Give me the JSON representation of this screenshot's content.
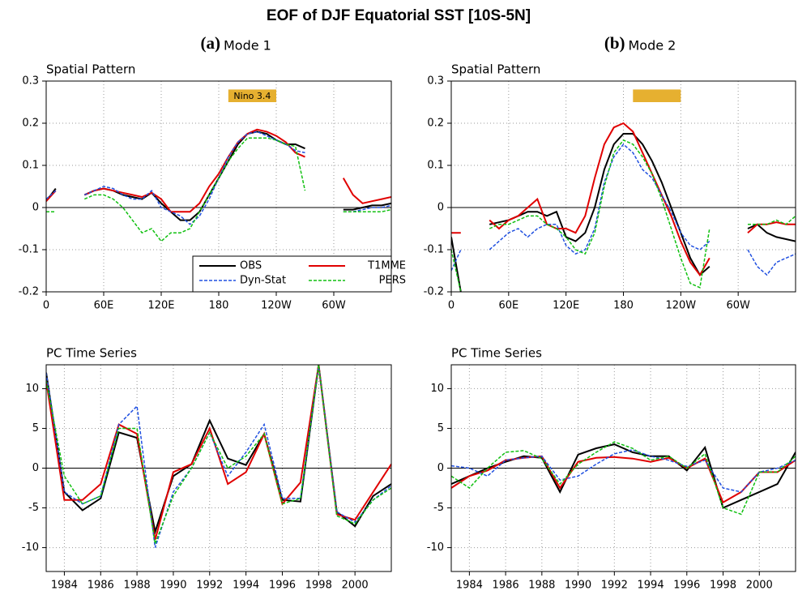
{
  "title": "EOF of DJF Equatorial SST [10S-5N]",
  "chart_data": [
    {
      "type": "line",
      "panel": "(a)",
      "title": "Mode 1",
      "subtitle": "Spatial Pattern",
      "x": [
        0,
        10,
        20,
        30,
        40,
        50,
        60,
        70,
        80,
        90,
        100,
        110,
        120,
        130,
        140,
        150,
        160,
        170,
        180,
        190,
        200,
        210,
        220,
        230,
        240,
        250,
        260,
        270,
        280,
        290,
        300,
        310,
        320,
        330,
        340,
        350,
        360
      ],
      "xlim": [
        0,
        360
      ],
      "xticks": [
        0,
        {
          "value": 60,
          "label": "60E"
        },
        {
          "value": 120,
          "label": "120E"
        },
        180,
        {
          "value": 240,
          "label": "120W"
        },
        {
          "value": 300,
          "label": "60W"
        }
      ],
      "ylim": [
        -0.2,
        0.3
      ],
      "yticks": [
        -0.2,
        -0.1,
        0,
        0.1,
        0.2,
        0.3
      ],
      "grid": true,
      "legend": "lower right",
      "box": {
        "xlim": [
          190,
          240
        ],
        "ylim": [
          0.25,
          0.28
        ],
        "label": "Nino 3.4",
        "color": "#e6b030"
      },
      "series": [
        {
          "name": "OBS",
          "color": "#000000",
          "linestyle": "solid",
          "values": [
            0.015,
            0.045,
            null,
            null,
            0.03,
            0.04,
            0.045,
            0.04,
            0.03,
            0.025,
            0.02,
            0.035,
            0.01,
            -0.01,
            -0.03,
            -0.03,
            -0.01,
            0.03,
            0.07,
            0.11,
            0.15,
            0.175,
            0.18,
            0.175,
            0.16,
            0.15,
            0.15,
            0.14,
            null,
            null,
            null,
            -0.005,
            -0.005,
            0,
            0.005,
            0.005,
            0.01
          ]
        },
        {
          "name": "T1MME",
          "color": "#e00000",
          "linestyle": "solid",
          "values": [
            0.015,
            0.04,
            null,
            null,
            0.03,
            0.04,
            0.045,
            0.04,
            0.035,
            0.03,
            0.025,
            0.035,
            0.02,
            -0.01,
            -0.01,
            -0.01,
            0.01,
            0.05,
            0.08,
            0.12,
            0.155,
            0.175,
            0.185,
            0.18,
            0.17,
            0.155,
            0.13,
            0.12,
            null,
            null,
            null,
            0.07,
            0.03,
            0.01,
            0.015,
            0.02,
            0.025
          ]
        },
        {
          "name": "Dyn-Stat",
          "color": "#2050e0",
          "linestyle": "dashed",
          "values": [
            0.02,
            0.04,
            null,
            null,
            0.03,
            0.04,
            0.05,
            0.045,
            0.03,
            0.02,
            0.02,
            0.04,
            0,
            -0.01,
            -0.02,
            -0.04,
            -0.02,
            0.02,
            0.07,
            0.12,
            0.155,
            0.175,
            0.18,
            0.17,
            0.16,
            0.15,
            0.135,
            0.13,
            null,
            null,
            null,
            -0.01,
            -0.01,
            -0.005,
            0,
            0,
            0.005
          ]
        },
        {
          "name": "PERS",
          "color": "#10c010",
          "linestyle": "dashed",
          "values": [
            -0.01,
            -0.01,
            null,
            null,
            0.02,
            0.03,
            0.03,
            0.02,
            0,
            -0.03,
            -0.06,
            -0.05,
            -0.08,
            -0.06,
            -0.06,
            -0.05,
            -0.01,
            0.03,
            0.07,
            0.11,
            0.14,
            0.165,
            0.165,
            0.165,
            0.16,
            0.15,
            0.145,
            0.04,
            null,
            null,
            null,
            -0.01,
            -0.01,
            -0.01,
            -0.01,
            -0.01,
            -0.005
          ]
        }
      ]
    },
    {
      "type": "line",
      "panel": "(b)",
      "title": "Mode 2",
      "subtitle": "Spatial Pattern",
      "x": [
        0,
        10,
        20,
        30,
        40,
        50,
        60,
        70,
        80,
        90,
        100,
        110,
        120,
        130,
        140,
        150,
        160,
        170,
        180,
        190,
        200,
        210,
        220,
        230,
        240,
        250,
        260,
        270,
        280,
        290,
        300,
        310,
        320,
        330,
        340,
        350,
        360
      ],
      "xlim": [
        0,
        360
      ],
      "xticks": [
        0,
        {
          "value": 60,
          "label": "60E"
        },
        {
          "value": 120,
          "label": "120E"
        },
        180,
        {
          "value": 240,
          "label": "120W"
        },
        {
          "value": 300,
          "label": "60W"
        }
      ],
      "ylim": [
        -0.2,
        0.3
      ],
      "yticks": [
        -0.2,
        -0.1,
        0,
        0.1,
        0.2,
        0.3
      ],
      "grid": true,
      "box": {
        "xlim": [
          190,
          240
        ],
        "ylim": [
          0.25,
          0.28
        ],
        "color": "#e6b030"
      },
      "series": [
        {
          "color": "#000000",
          "linestyle": "solid",
          "values": [
            -0.07,
            -0.2,
            null,
            null,
            -0.04,
            -0.035,
            -0.03,
            -0.02,
            -0.01,
            -0.01,
            -0.02,
            -0.01,
            -0.07,
            -0.08,
            -0.06,
            0,
            0.09,
            0.15,
            0.175,
            0.175,
            0.15,
            0.11,
            0.06,
            0,
            -0.06,
            -0.12,
            -0.16,
            -0.14,
            null,
            null,
            null,
            -0.05,
            -0.04,
            -0.06,
            -0.07,
            -0.075,
            -0.08
          ]
        },
        {
          "color": "#e00000",
          "linestyle": "solid",
          "values": [
            -0.06,
            -0.06,
            null,
            null,
            -0.03,
            -0.05,
            -0.03,
            -0.02,
            0,
            0.02,
            -0.04,
            -0.05,
            -0.05,
            -0.06,
            -0.02,
            0.07,
            0.15,
            0.19,
            0.2,
            0.18,
            0.13,
            0.08,
            0.03,
            -0.02,
            -0.08,
            -0.13,
            -0.16,
            -0.12,
            null,
            null,
            null,
            -0.06,
            -0.04,
            -0.04,
            -0.035,
            -0.04,
            -0.04
          ]
        },
        {
          "color": "#2050e0",
          "linestyle": "dashed",
          "values": [
            -0.15,
            -0.1,
            null,
            null,
            -0.1,
            -0.08,
            -0.06,
            -0.05,
            -0.07,
            -0.05,
            -0.04,
            -0.04,
            -0.09,
            -0.11,
            -0.1,
            -0.05,
            0.06,
            0.12,
            0.15,
            0.13,
            0.09,
            0.07,
            0.03,
            -0.01,
            -0.06,
            -0.09,
            -0.1,
            -0.08,
            null,
            null,
            null,
            -0.1,
            -0.14,
            -0.16,
            -0.13,
            -0.12,
            -0.11
          ]
        },
        {
          "color": "#10c010",
          "linestyle": "dashed",
          "values": [
            -0.1,
            -0.2,
            null,
            null,
            -0.05,
            -0.04,
            -0.04,
            -0.03,
            -0.02,
            -0.02,
            -0.04,
            -0.05,
            -0.07,
            -0.1,
            -0.11,
            -0.06,
            0.05,
            0.13,
            0.16,
            0.15,
            0.12,
            0.08,
            0.02,
            -0.05,
            -0.12,
            -0.18,
            -0.19,
            -0.05,
            null,
            null,
            null,
            -0.04,
            -0.04,
            -0.04,
            -0.03,
            -0.04,
            -0.02
          ]
        }
      ]
    },
    {
      "type": "line",
      "subtitle": "PC Time Series",
      "x": [
        1983,
        1984,
        1985,
        1986,
        1987,
        1988,
        1989,
        1990,
        1991,
        1992,
        1993,
        1994,
        1995,
        1996,
        1997,
        1998,
        1999,
        2000,
        2001,
        2002
      ],
      "xlim": [
        1983,
        2002
      ],
      "xticks": [
        1984,
        1986,
        1988,
        1990,
        1992,
        1994,
        1996,
        1998,
        2000
      ],
      "ylim": [
        -13,
        13
      ],
      "yticks": [
        -10,
        -5,
        0,
        5,
        10
      ],
      "grid": true,
      "series": [
        {
          "color": "#000000",
          "linestyle": "solid",
          "values": [
            12,
            -3,
            -5.3,
            -3.8,
            4.5,
            3.8,
            -8,
            -1,
            0.5,
            6,
            1.2,
            0.4,
            4.3,
            -4,
            -4.2,
            13,
            -5.5,
            -7.3,
            -3.5,
            -2
          ]
        },
        {
          "color": "#e00000",
          "linestyle": "solid",
          "values": [
            11,
            -4,
            -4,
            -2,
            5.5,
            4.3,
            -9,
            -0.5,
            0.5,
            5,
            -2,
            -0.5,
            4.3,
            -4.5,
            -1.8,
            13,
            -5.8,
            -6.5,
            -3,
            0.5
          ]
        },
        {
          "color": "#2050e0",
          "linestyle": "dashed",
          "values": [
            12,
            -3,
            -4.5,
            -3.5,
            5.5,
            7.8,
            -10,
            -3,
            0,
            4.5,
            -1,
            2,
            5.5,
            -3.8,
            -3.8,
            13,
            -5.5,
            -6.8,
            -4,
            -2.2
          ]
        },
        {
          "color": "#10c010",
          "linestyle": "dashed",
          "values": [
            11,
            -1,
            -4.5,
            -3.5,
            5,
            5,
            -9.5,
            -3.5,
            0,
            4.5,
            0,
            1.5,
            4.3,
            -4.5,
            -3.8,
            13,
            -6,
            -7,
            -4,
            -2.5
          ]
        }
      ]
    },
    {
      "type": "line",
      "subtitle": "PC Time Series",
      "x": [
        1983,
        1984,
        1985,
        1986,
        1987,
        1988,
        1989,
        1990,
        1991,
        1992,
        1993,
        1994,
        1995,
        1996,
        1997,
        1998,
        1999,
        2000,
        2001,
        2002
      ],
      "xlim": [
        1983,
        2002
      ],
      "xticks": [
        1984,
        1986,
        1988,
        1990,
        1992,
        1994,
        1996,
        1998,
        2000
      ],
      "ylim": [
        -13,
        13
      ],
      "yticks": [
        -10,
        -5,
        0,
        5,
        10
      ],
      "grid": true,
      "series": [
        {
          "color": "#000000",
          "linestyle": "solid",
          "values": [
            -2,
            -1,
            0,
            0.8,
            1.5,
            1.3,
            -3,
            1.7,
            2.5,
            3,
            2,
            1.5,
            1.5,
            -0.3,
            2.6,
            -5,
            -4,
            -3,
            -2,
            2
          ]
        },
        {
          "color": "#e00000",
          "linestyle": "solid",
          "values": [
            -2.5,
            -1,
            -0.3,
            1,
            1.3,
            1.5,
            -2.5,
            0.8,
            1.3,
            1.4,
            1.2,
            0.8,
            1.3,
            0,
            1.2,
            -4.3,
            -3,
            -0.5,
            -0.5,
            1
          ]
        },
        {
          "color": "#2050e0",
          "linestyle": "dashed",
          "values": [
            0.3,
            0,
            -1,
            1,
            1.3,
            1.5,
            -1.5,
            -1,
            0.5,
            1.8,
            2.3,
            1.5,
            1,
            0.2,
            1,
            -2.5,
            -3,
            -0.5,
            0,
            1
          ]
        },
        {
          "color": "#10c010",
          "linestyle": "dashed",
          "values": [
            -1,
            -2.5,
            0,
            2,
            2.2,
            1.2,
            -2,
            0.5,
            2,
            3.3,
            2.5,
            1,
            1.5,
            0,
            1.8,
            -5,
            -5.8,
            -0.5,
            -0.5,
            1.5
          ]
        }
      ]
    }
  ]
}
